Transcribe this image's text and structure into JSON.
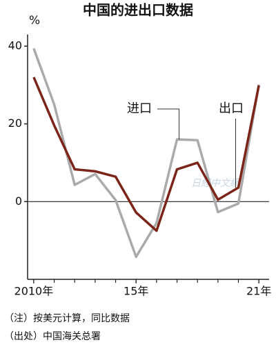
{
  "chart_data": {
    "type": "line",
    "title": "中国的进出口数据",
    "y_unit": "%",
    "x": [
      2010,
      2011,
      2012,
      2013,
      2014,
      2015,
      2016,
      2017,
      2018,
      2019,
      2020,
      2021
    ],
    "xlim": [
      2009.7,
      2021.5
    ],
    "xticks": [
      {
        "value": 2010,
        "label": "2010年"
      },
      {
        "value": 2015,
        "label": "15年"
      },
      {
        "value": 2021,
        "label": "21年"
      }
    ],
    "ylim": [
      -20,
      43
    ],
    "yticks": [
      0,
      20,
      40
    ],
    "series": [
      {
        "name": "进口",
        "color": "#aaaaaa",
        "values": [
          39.4,
          25,
          4.3,
          7.1,
          0.4,
          -14.2,
          -5.5,
          16,
          15.8,
          -2.7,
          -0.5,
          30.1
        ]
      },
      {
        "name": "出口",
        "color": "#7b2418",
        "values": [
          32,
          19.6,
          8.3,
          7.8,
          6.4,
          -2.8,
          -7.5,
          8.3,
          10,
          0.5,
          3.6,
          29.9
        ]
      }
    ],
    "watermark": "日経中文網",
    "notes": [
      "（注）按美元计算，同比数据",
      "（出处）中国海关总署"
    ]
  }
}
